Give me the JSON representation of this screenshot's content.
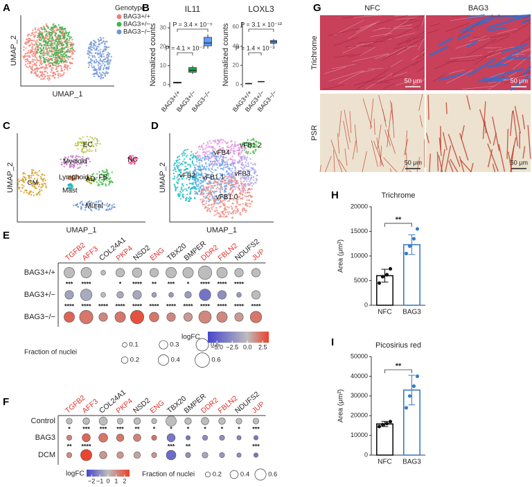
{
  "chart_data": [
    {
      "panel": "A",
      "type": "umap",
      "xlabel": "UMAP_1",
      "ylabel": "UMAP_2",
      "legend_title": "Genotype",
      "series": [
        {
          "name": "BAG3+/+",
          "color": "#f07f73"
        },
        {
          "name": "BAG3+/−",
          "color": "#3cb44b"
        },
        {
          "name": "BAG3−/−",
          "color": "#6f93d6"
        }
      ]
    },
    {
      "panel": "B",
      "type": "box",
      "title": "IL11",
      "ylabel": "Normalized counts",
      "categories": [
        "BAG3+/+",
        "BAG3+/−",
        "BAG3−/−"
      ],
      "colors": [
        "#f8766d",
        "#00ba38",
        "#619cff"
      ],
      "boxes": [
        {
          "min": 0.5,
          "q1": 0.8,
          "median": 1,
          "q3": 1.3,
          "max": 1.5
        },
        {
          "min": 5.5,
          "q1": 6.5,
          "median": 7.5,
          "q3": 9,
          "max": 10
        },
        {
          "min": 19,
          "q1": 20.5,
          "median": 22,
          "q3": 25,
          "max": 26.5
        }
      ],
      "ylim": [
        -1.5,
        33
      ],
      "yticks": [
        0,
        10,
        20,
        30
      ],
      "annotations": [
        "P = 4.1 × 10⁻³",
        "P = 3.4 × 10⁻⁵"
      ]
    },
    {
      "type": "box",
      "title": "LOXL3",
      "ylabel": "Normalized counts",
      "categories": [
        "BAG3+/+",
        "BAG3+/−",
        "BAG3−/−"
      ],
      "colors": [
        "#f8766d",
        "#00ba38",
        "#619cff"
      ],
      "boxes": [
        {
          "min": 0.3,
          "q1": 0.6,
          "median": 1,
          "q3": 1.3,
          "max": 1.8
        },
        {
          "min": 2.4,
          "q1": 2.7,
          "median": 3,
          "q3": 3.3,
          "max": 3.6
        },
        {
          "min": 41,
          "q1": 43,
          "median": 44.5,
          "q3": 46,
          "max": 47.5
        }
      ],
      "ylim": [
        -3,
        65
      ],
      "yticks": [
        0,
        20,
        40,
        60
      ],
      "annotations": [
        "P = 1.4 × 10⁻³",
        "P = 3.1 × 10⁻¹³"
      ]
    },
    {
      "panel": "C",
      "type": "umap",
      "xlabel": "UMAP_1",
      "ylabel": "UMAP_2",
      "series": [
        {
          "name": "EC",
          "color": "#b3c43a"
        },
        {
          "name": "Myeloid",
          "color": "#c46fc4"
        },
        {
          "name": "NC",
          "color": "#e0508f"
        },
        {
          "name": "CM",
          "color": "#d49a1a"
        },
        {
          "name": "Lymphoid",
          "color": "#e07030"
        },
        {
          "name": "Mast",
          "color": "#20b8b8"
        },
        {
          "name": "AD",
          "color": "#a8b020"
        },
        {
          "name": "FB",
          "color": "#3cba3c"
        },
        {
          "name": "Mural",
          "color": "#6a92d4"
        }
      ]
    },
    {
      "panel": "D",
      "type": "umap",
      "xlabel": "UMAP_1",
      "ylabel": "UMAP_2",
      "series": [
        {
          "name": "vFB1.2",
          "color": "#4cc94c"
        },
        {
          "name": "vFB4",
          "color": "#e08ddc"
        },
        {
          "name": "vFB2",
          "color": "#22bcc4"
        },
        {
          "name": "vFB1.1",
          "color": "#6aa6ee"
        },
        {
          "name": "vFB3",
          "color": "#a8a4ee"
        },
        {
          "name": "vFB1.0",
          "color": "#f08a80"
        }
      ]
    },
    {
      "panel": "E",
      "type": "dot",
      "categories": [
        "TGFB2",
        "AFF3",
        "COL24A1",
        "PKP4",
        "NSD2",
        "ENG",
        "TBX20",
        "BMPER",
        "DDR2",
        "FBLN2",
        "NDUFS2",
        "JUP"
      ],
      "category_colors": [
        "#e0312a",
        "#e0312a",
        "#222222",
        "#e0312a",
        "#222222",
        "#e0312a",
        "#222222",
        "#222222",
        "#e0312a",
        "#e0312a",
        "#222222",
        "#e0312a"
      ],
      "rows": [
        {
          "name": "BAG3+/+",
          "fraction": [
            0.4,
            0.4,
            0.1,
            0.3,
            0.35,
            0.3,
            0.4,
            0.4,
            0.55,
            0.4,
            0.3,
            0.3
          ]
        },
        {
          "name": "BAG3+/−",
          "fraction": [
            0.3,
            0.45,
            0.1,
            0.2,
            0.3,
            0.1,
            0.1,
            0.2,
            0.45,
            0.3,
            0.1,
            0.3
          ],
          "logfc": [
            -1.5,
            -1,
            0,
            -1,
            -1.2,
            -1.5,
            -2,
            -1.8,
            -4,
            -2.5,
            -2,
            0
          ],
          "stars": [
            "***",
            "****",
            null,
            "*",
            "****",
            "**",
            "***",
            "*",
            "****",
            "****",
            "****",
            null
          ]
        },
        {
          "name": "BAG3−/−",
          "fraction": [
            0.4,
            0.55,
            0.3,
            0.4,
            0.55,
            0.35,
            0.3,
            0.3,
            0.5,
            0.4,
            0.3,
            0.45
          ],
          "logfc": [
            2.5,
            2,
            1.5,
            2,
            3,
            2,
            1.5,
            1,
            1.5,
            1.5,
            1,
            2
          ],
          "stars": [
            "****",
            "****",
            "****",
            "****",
            "****",
            "****",
            "****",
            "****",
            "****",
            "****",
            "****",
            "****"
          ]
        }
      ],
      "fraction_legend_title": "Fraction of nuclei",
      "fraction_legend": [
        0.1,
        0.2,
        0.3,
        0.4,
        0.5,
        0.6
      ],
      "colorbar_title": "logFC",
      "clim": [
        -6.5,
        3.5
      ],
      "cticks": [
        {
          "value": -5,
          "label": "−5.0"
        },
        {
          "value": -2.5,
          "label": "−2.5"
        },
        {
          "value": 0,
          "label": "0.0"
        },
        2.5
      ]
    },
    {
      "panel": "F",
      "type": "dot",
      "categories": [
        "TGFB2",
        "AFF3",
        "COL24A1",
        "PKP4",
        "NSD2",
        "ENG",
        "TBX20",
        "BMPER",
        "DDR2",
        "FBLN2",
        "NDUFS2",
        "JUP"
      ],
      "category_colors": [
        "#e0312a",
        "#e0312a",
        "#222222",
        "#e0312a",
        "#222222",
        "#e0312a",
        "#222222",
        "#222222",
        "#e0312a",
        "#e0312a",
        "#222222",
        "#e0312a"
      ],
      "rows": [
        {
          "name": "Control",
          "fraction": [
            0.25,
            0.3,
            0.4,
            0.25,
            0.3,
            0.2,
            0.55,
            0.3,
            0.35,
            0.3,
            0.25,
            0.25
          ]
        },
        {
          "name": "BAG3",
          "fraction": [
            0.2,
            0.4,
            0.45,
            0.35,
            0.35,
            0.2,
            0.4,
            0.15,
            0.2,
            0.2,
            0.15,
            0.15
          ],
          "logfc": [
            1.2,
            1.8,
            1.5,
            1.5,
            1.2,
            1.5,
            -1.5,
            -1.5,
            -1,
            -1,
            -1.2,
            -1.5
          ],
          "stars": [
            "*",
            "***",
            "***",
            "***",
            "**",
            "*",
            "*",
            "*",
            "*",
            "*",
            "*",
            "***"
          ]
        },
        {
          "name": "DCM",
          "fraction": [
            0.2,
            0.6,
            0.35,
            0.3,
            0.3,
            0.2,
            0.5,
            0.2,
            0.25,
            0.2,
            0.15,
            0.15
          ],
          "logfc": [
            1,
            2.5,
            0.8,
            0.8,
            0.5,
            0.8,
            -1.8,
            -1,
            -0.5,
            -0.8,
            -1,
            -1.5
          ],
          "stars": [
            "**",
            "****",
            null,
            null,
            null,
            null,
            "***",
            "**",
            null,
            null,
            null,
            "***"
          ]
        }
      ],
      "fraction_legend_title": "Fraction of nuclei",
      "fraction_legend": [
        0.2,
        0.4,
        0.6
      ],
      "colorbar_title": "logFC",
      "clim": [
        -2.6,
        2.6
      ],
      "cticks": [
        {
          "value": -2,
          "label": "−2"
        },
        {
          "value": -1,
          "label": "−1"
        },
        0,
        1,
        2
      ]
    },
    {
      "panel": "H",
      "type": "bar",
      "title": "Trichrome",
      "ylabel": "Area (μm²)",
      "categories": [
        "NFC",
        "BAG3"
      ],
      "values": [
        6000,
        12300
      ],
      "errors": [
        1300,
        2000
      ],
      "colors": [
        "#111111",
        "#3a7cc4"
      ],
      "points": [
        [
          4500,
          5800,
          6200,
          7400
        ],
        [
          10500,
          12000,
          13500,
          15500
        ]
      ],
      "significance": "**",
      "ylim": [
        0,
        20000
      ],
      "yticks": [
        0,
        5000,
        10000,
        15000,
        20000
      ]
    },
    {
      "panel": "I",
      "type": "bar",
      "title": "Picosirius red",
      "ylabel": "Area (μm²)",
      "categories": [
        "NFC",
        "BAG3"
      ],
      "values": [
        15800,
        33000
      ],
      "errors": [
        1300,
        7500
      ],
      "colors": [
        "#111111",
        "#3a7cc4"
      ],
      "points": [
        [
          14500,
          15500,
          16000,
          17000
        ],
        [
          24000,
          30000,
          35000,
          40000
        ]
      ],
      "significance": "**",
      "ylim": [
        0,
        50000
      ],
      "yticks": [
        0,
        10000,
        20000,
        30000,
        40000,
        50000
      ]
    }
  ],
  "micrographs": {
    "panel": "G",
    "columns": [
      "NFC",
      "BAG3"
    ],
    "rows": [
      "Trichrome",
      "PSR"
    ],
    "scale_bars": [
      "50 μm",
      "50 μm",
      "50 μm",
      "50 μm"
    ]
  }
}
